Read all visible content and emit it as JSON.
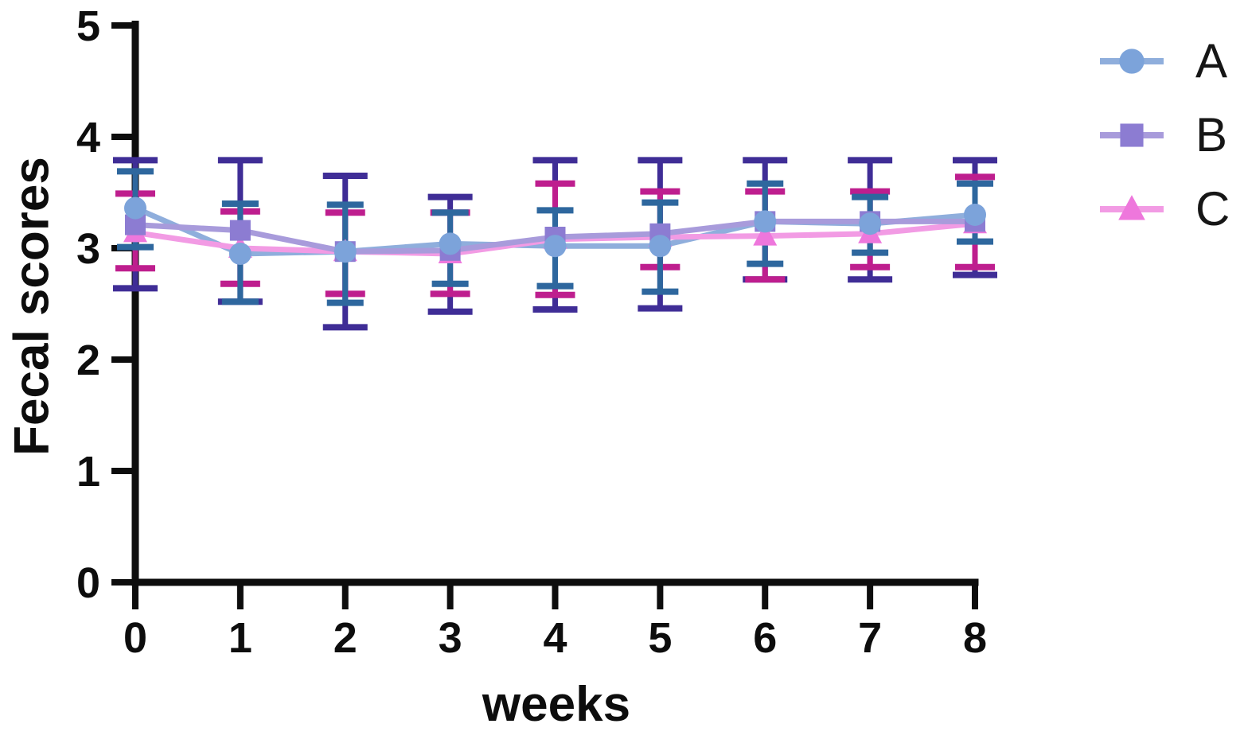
{
  "page": {
    "background_color": "#ffffff",
    "axis_color": "#0d0d0d",
    "text_color": "#0d0d0d"
  },
  "chart_data": {
    "type": "line",
    "title": "",
    "xlabel": "weeks",
    "ylabel": "Fecal scores",
    "x": [
      0,
      1,
      2,
      3,
      4,
      5,
      6,
      7,
      8
    ],
    "xticks": [
      "0",
      "1",
      "2",
      "3",
      "4",
      "5",
      "6",
      "7",
      "8"
    ],
    "yticks": [
      "0",
      "1",
      "2",
      "3",
      "4",
      "5"
    ],
    "xlim": [
      0,
      8
    ],
    "ylim": [
      0,
      5
    ],
    "grid": false,
    "legend_position": "top-right",
    "error_bars": "symmetric-caps",
    "series": [
      {
        "name": "A",
        "marker": "circle",
        "line_color": "#8FAEDC",
        "marker_color": "#7CA3DA",
        "error_color": "#2E679E",
        "values": [
          3.36,
          2.95,
          2.97,
          3.04,
          3.02,
          3.02,
          3.24,
          3.22,
          3.3
        ],
        "err_up": [
          0.33,
          0.45,
          0.42,
          0.28,
          0.32,
          0.39,
          0.34,
          0.24,
          0.28
        ],
        "err_down": [
          0.35,
          0.43,
          0.46,
          0.36,
          0.36,
          0.41,
          0.38,
          0.26,
          0.24
        ]
      },
      {
        "name": "B",
        "marker": "square",
        "line_color": "#A89BDB",
        "marker_color": "#8C7CD2",
        "error_color": "#3F2D96",
        "values": [
          3.21,
          3.16,
          2.97,
          2.98,
          3.1,
          3.13,
          3.24,
          3.24,
          3.24
        ],
        "err_up": [
          0.58,
          0.63,
          0.68,
          0.48,
          0.69,
          0.66,
          0.55,
          0.55,
          0.55
        ],
        "err_down": [
          0.57,
          0.64,
          0.68,
          0.55,
          0.65,
          0.67,
          0.52,
          0.52,
          0.48
        ]
      },
      {
        "name": "C",
        "marker": "triangle",
        "line_color": "#F29BE4",
        "marker_color": "#EE77DC",
        "error_color": "#BE1E8E",
        "values": [
          3.14,
          3.0,
          2.97,
          2.95,
          3.08,
          3.1,
          3.11,
          3.13,
          3.22
        ],
        "err_up": [
          0.35,
          0.33,
          0.35,
          0.37,
          0.5,
          0.41,
          0.4,
          0.38,
          0.42
        ],
        "err_down": [
          0.32,
          0.32,
          0.38,
          0.36,
          0.5,
          0.27,
          0.39,
          0.3,
          0.39
        ]
      }
    ]
  }
}
